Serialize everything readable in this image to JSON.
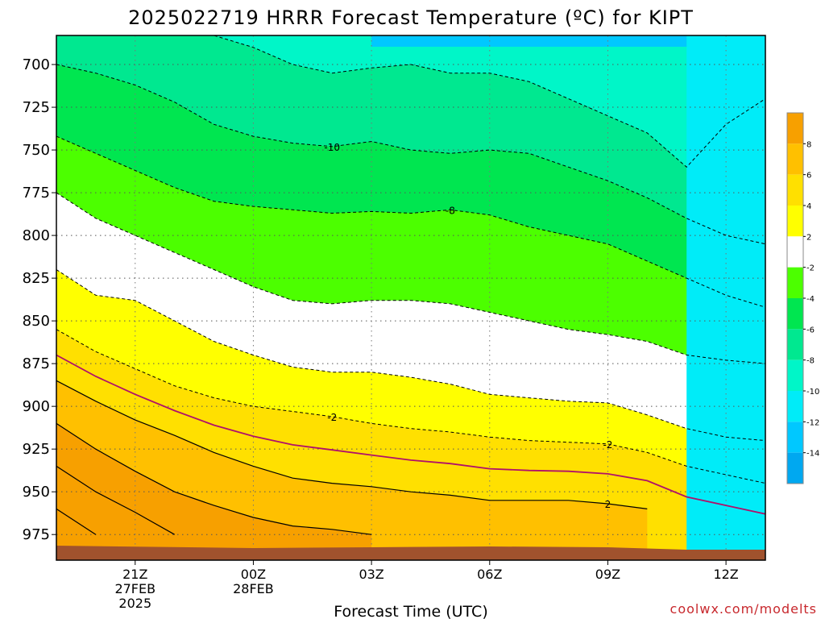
{
  "chart_data": {
    "type": "heatmap",
    "title": "2025022719 HRRR Forecast Temperature (ºC) for KIPT",
    "xlabel": "Forecast Time (UTC)",
    "ylabel": "",
    "credit": "coolwx.com/modelts",
    "x_ticks": [
      {
        "label": "21Z",
        "sub": [
          "27FEB",
          "2025"
        ],
        "hour": 21
      },
      {
        "label": "00Z",
        "sub": [
          "28FEB"
        ],
        "hour": 24
      },
      {
        "label": "03Z",
        "sub": [],
        "hour": 27
      },
      {
        "label": "06Z",
        "sub": [],
        "hour": 30
      },
      {
        "label": "09Z",
        "sub": [],
        "hour": 33
      },
      {
        "label": "12Z",
        "sub": [],
        "hour": 36
      }
    ],
    "x_range_hours": [
      19,
      37
    ],
    "y_ticks": [
      700,
      725,
      750,
      775,
      800,
      825,
      850,
      875,
      900,
      925,
      950,
      975
    ],
    "y_range_hpa": [
      683,
      990
    ],
    "grid": true,
    "colorbar": {
      "position": "right",
      "labels": [
        "8",
        "6",
        "4",
        "2",
        "-2",
        "-4",
        "-6",
        "-8",
        "-10",
        "-12",
        "-14"
      ],
      "colors": [
        "#f7a000",
        "#ffc000",
        "#ffe000",
        "#ffff00",
        "#ffffff",
        "#4cff00",
        "#00e650",
        "#00e890",
        "#00f6c8",
        "#00ecf8",
        "#00c8ff",
        "#00a8f0"
      ]
    },
    "contour_labels": [
      "-10",
      "-8",
      "-2",
      "-2",
      "2"
    ],
    "hours": [
      19,
      20,
      21,
      22,
      23,
      24,
      25,
      26,
      27,
      28,
      29,
      30,
      31,
      32,
      33,
      34,
      35,
      36,
      37
    ],
    "isotherms_hpa": {
      "-14": [
        null,
        null,
        null,
        null,
        null,
        null,
        null,
        null,
        683,
        683,
        683,
        683,
        683,
        683,
        683,
        683,
        683,
        null,
        null
      ],
      "-12": [
        null,
        null,
        683,
        683,
        683,
        690,
        700,
        705,
        702,
        700,
        705,
        705,
        710,
        720,
        730,
        740,
        760,
        735,
        720
      ],
      "-10": [
        700,
        705,
        712,
        722,
        735,
        742,
        746,
        748,
        745,
        750,
        752,
        750,
        752,
        760,
        768,
        778,
        790,
        800,
        805
      ],
      "-8": [
        742,
        752,
        762,
        772,
        780,
        783,
        785,
        787,
        786,
        787,
        785,
        788,
        795,
        800,
        805,
        815,
        825,
        835,
        842
      ],
      "-6": [
        775,
        790,
        800,
        810,
        820,
        830,
        838,
        840,
        838,
        838,
        840,
        845,
        850,
        855,
        858,
        862,
        870,
        873,
        875
      ],
      "-4": [
        820,
        835,
        838,
        850,
        862,
        870,
        877,
        880,
        880,
        883,
        887,
        893,
        895,
        897,
        898,
        905,
        913,
        918,
        920
      ],
      "-2": [
        855,
        868,
        878,
        888,
        895,
        900,
        903,
        906,
        910,
        913,
        915,
        918,
        920,
        921,
        922,
        927,
        935,
        940,
        945
      ],
      "2": [
        885,
        897,
        908,
        917,
        927,
        935,
        942,
        945,
        947,
        950,
        952,
        955,
        955,
        955,
        957,
        960,
        null,
        null,
        null
      ],
      "4": [
        910,
        925,
        938,
        950,
        958,
        965,
        970,
        972,
        975,
        null,
        null,
        null,
        null,
        null,
        null,
        null,
        null,
        null,
        null
      ],
      "6": [
        935,
        950,
        962,
        975,
        null,
        null,
        null,
        null,
        null,
        null,
        null,
        null,
        null,
        null,
        null,
        null,
        null,
        null,
        null
      ],
      "8": [
        960,
        975,
        null,
        null,
        null,
        null,
        null,
        null,
        null,
        null,
        null,
        null,
        null,
        null,
        null,
        null,
        null,
        null,
        null
      ]
    },
    "surface_color": "#a0522d",
    "freezing_line_color": "#b0106a"
  }
}
